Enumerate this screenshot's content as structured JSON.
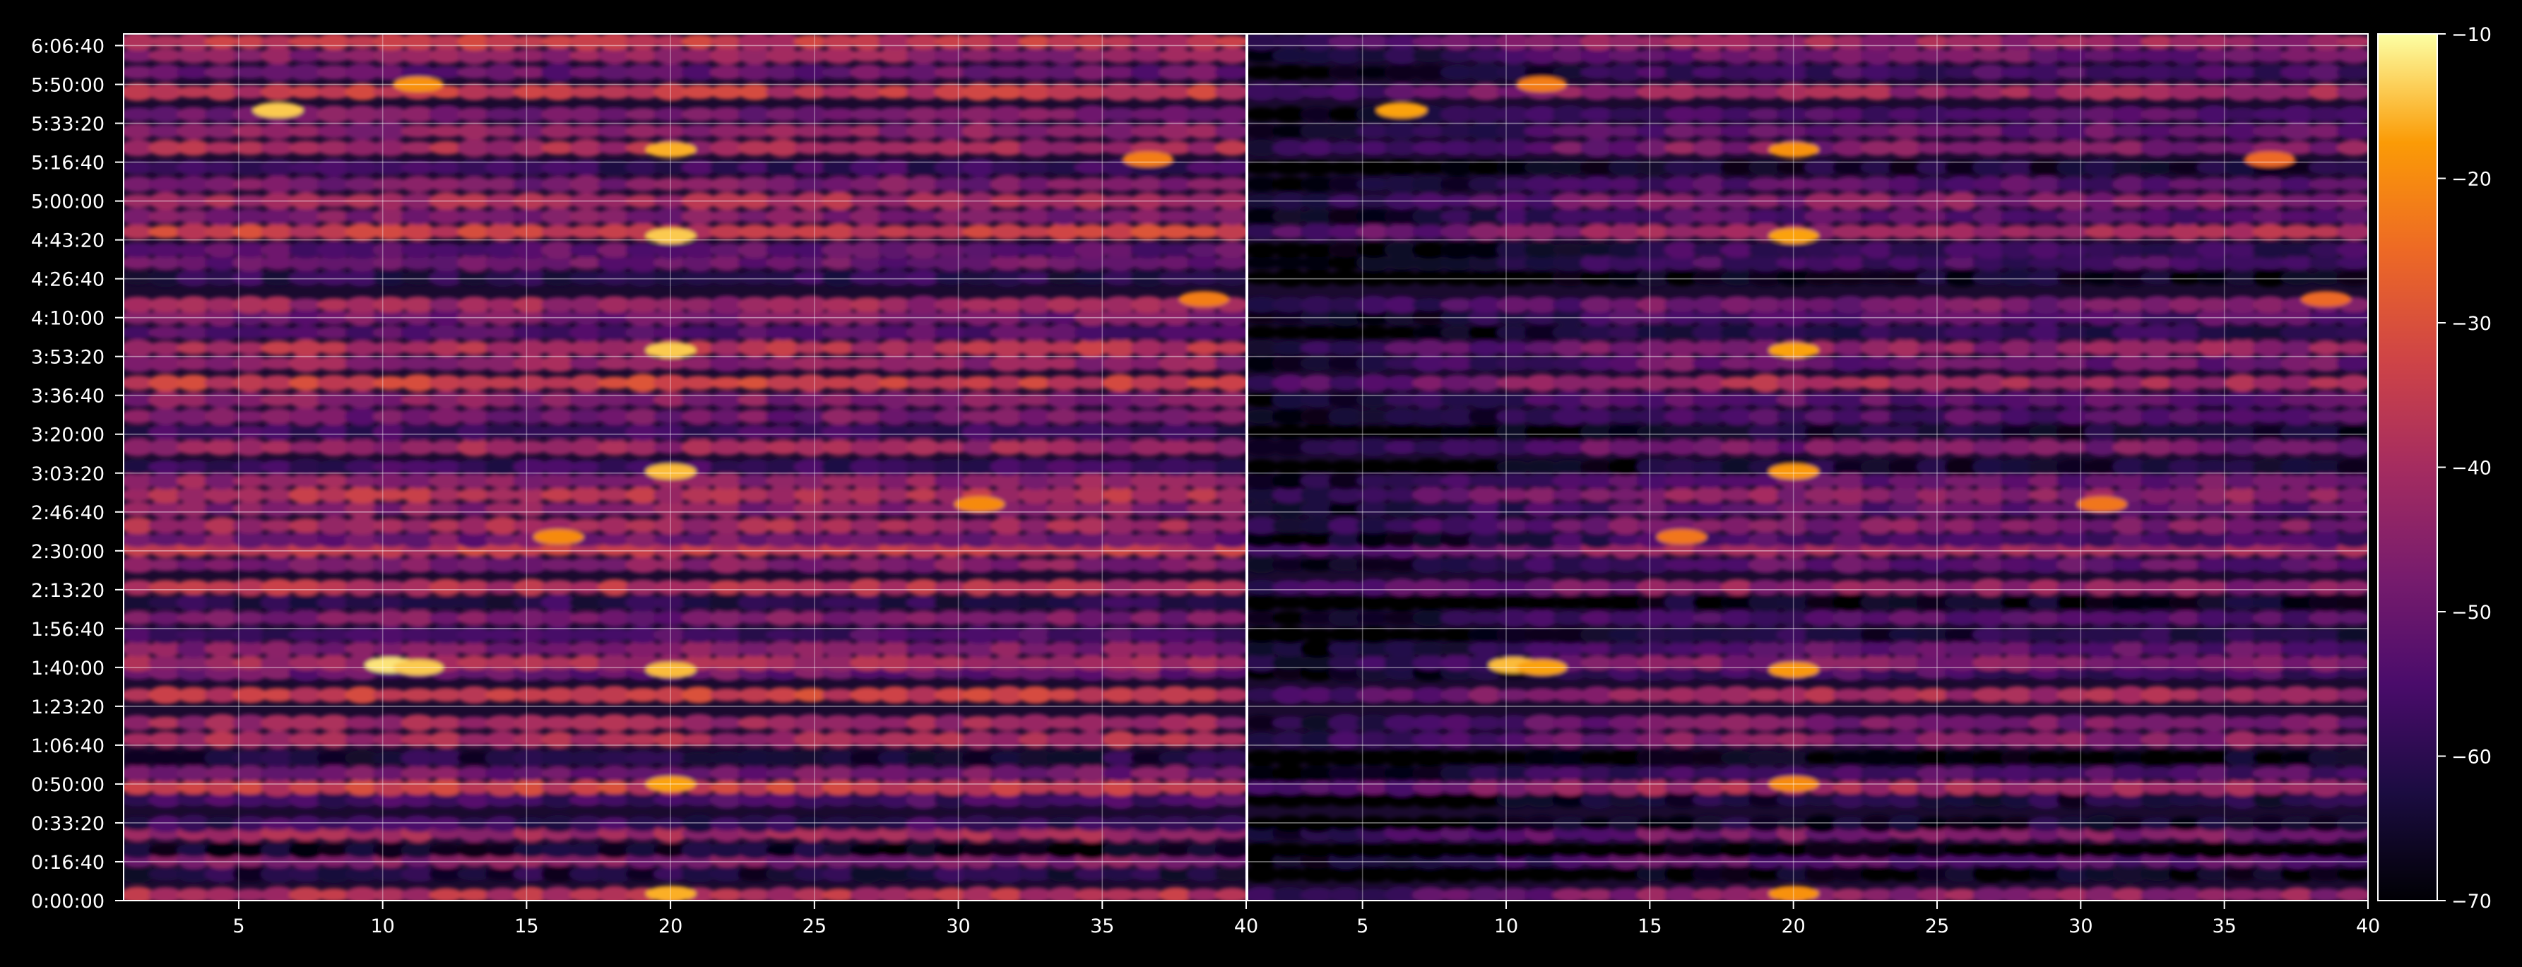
{
  "chart_data": {
    "type": "heatmap",
    "title": "",
    "panels": [
      {
        "name": "",
        "xlim": [
          1,
          40
        ],
        "x_ticks": [
          "5",
          "10",
          "15",
          "20",
          "25",
          "30",
          "35",
          "40"
        ],
        "x_tick_values": [
          5,
          10,
          15,
          20,
          25,
          30,
          35,
          40
        ]
      },
      {
        "name": "",
        "xlim": [
          1,
          40
        ],
        "x_ticks": [
          "5",
          "10",
          "15",
          "20",
          "25",
          "30",
          "35",
          "40"
        ],
        "x_tick_values": [
          5,
          10,
          15,
          20,
          25,
          30,
          35,
          40
        ]
      }
    ],
    "y_axis": {
      "ticks": [
        "0:00:00",
        "0:16:40",
        "0:33:20",
        "0:50:00",
        "1:06:40",
        "1:23:20",
        "1:40:00",
        "1:56:40",
        "2:13:20",
        "2:30:00",
        "2:46:40",
        "3:03:20",
        "3:20:00",
        "3:36:40",
        "3:53:20",
        "4:10:00",
        "4:26:40",
        "4:43:20",
        "5:00:00",
        "5:16:40",
        "5:33:20",
        "5:50:00",
        "6:06:40"
      ],
      "tick_seconds": [
        0,
        1000,
        2000,
        3000,
        4000,
        5000,
        6000,
        7000,
        8000,
        9000,
        10000,
        11000,
        12000,
        13000,
        14000,
        15000,
        16000,
        17000,
        18000,
        19000,
        20000,
        21000,
        22000
      ],
      "ylim_seconds": [
        0,
        22300
      ]
    },
    "colorbar": {
      "colormap": "inferno",
      "vmin": -70,
      "vmax": -10,
      "ticks": [
        "−70",
        "−60",
        "−50",
        "−40",
        "−30",
        "−20",
        "−10"
      ],
      "tick_values": [
        -70,
        -60,
        -50,
        -40,
        -30,
        -20,
        -10
      ]
    },
    "grid": true,
    "row_levels": [
      [
        0.04,
        -38
      ],
      [
        0.19,
        -62
      ],
      [
        0.29,
        -46
      ],
      [
        0.36,
        -66
      ],
      [
        0.48,
        -41
      ],
      [
        0.55,
        -58
      ],
      [
        0.72,
        -56
      ],
      [
        0.81,
        -34
      ],
      [
        0.91,
        -48
      ],
      [
        1.02,
        -62
      ],
      [
        1.15,
        -40
      ],
      [
        1.27,
        -42
      ],
      [
        1.47,
        -34
      ],
      [
        1.63,
        -50
      ],
      [
        1.7,
        -41
      ],
      [
        1.8,
        -46
      ],
      [
        1.9,
        -56
      ],
      [
        2.02,
        -48
      ],
      [
        2.13,
        -60
      ],
      [
        2.24,
        -38
      ],
      [
        2.4,
        -46
      ],
      [
        2.51,
        -35
      ],
      [
        2.58,
        -48
      ],
      [
        2.68,
        -40
      ],
      [
        2.8,
        -46
      ],
      [
        2.9,
        -38
      ],
      [
        3.0,
        -44
      ],
      [
        3.1,
        -58
      ],
      [
        3.24,
        -42
      ],
      [
        3.35,
        -58
      ],
      [
        3.46,
        -48
      ],
      [
        3.58,
        -46
      ],
      [
        3.7,
        -34
      ],
      [
        3.84,
        -44
      ],
      [
        3.95,
        -38
      ],
      [
        4.06,
        -54
      ],
      [
        4.17,
        -48
      ],
      [
        4.26,
        -42
      ],
      [
        4.45,
        -60
      ],
      [
        4.56,
        -50
      ],
      [
        4.65,
        -52
      ],
      [
        4.78,
        -34
      ],
      [
        4.89,
        -46
      ],
      [
        5.0,
        -40
      ],
      [
        5.12,
        -48
      ],
      [
        5.24,
        -58
      ],
      [
        5.38,
        -40
      ],
      [
        5.5,
        -44
      ],
      [
        5.62,
        -48
      ],
      [
        5.78,
        -36
      ],
      [
        5.92,
        -50
      ],
      [
        6.04,
        -44
      ],
      [
        6.14,
        -36
      ],
      [
        6.28,
        -40
      ],
      [
        6.37,
        -56
      ]
    ],
    "hotspots": [
      {
        "x": 6,
        "time": "5:39",
        "v": -14
      },
      {
        "x": 10,
        "time": "1:41",
        "v": -12
      },
      {
        "x": 11,
        "time": "1:40",
        "v": -14
      },
      {
        "x": 20,
        "time": "4:45",
        "v": -14
      },
      {
        "x": 20,
        "time": "3:56",
        "v": -14
      },
      {
        "x": 20,
        "time": "3:04",
        "v": -15
      },
      {
        "x": 20,
        "time": "1:39",
        "v": -15
      },
      {
        "x": 20,
        "time": "0:50",
        "v": -17
      },
      {
        "x": 20,
        "time": "0:03",
        "v": -16
      },
      {
        "x": 20,
        "time": "5:22",
        "v": -16
      },
      {
        "x": 31,
        "time": "2:50",
        "v": -20
      },
      {
        "x": 37,
        "time": "5:18",
        "v": -22
      },
      {
        "x": 39,
        "time": "4:18",
        "v": -22
      },
      {
        "x": 16,
        "time": "2:36",
        "v": -20
      },
      {
        "x": 11,
        "time": "5:50",
        "v": -19
      }
    ]
  }
}
